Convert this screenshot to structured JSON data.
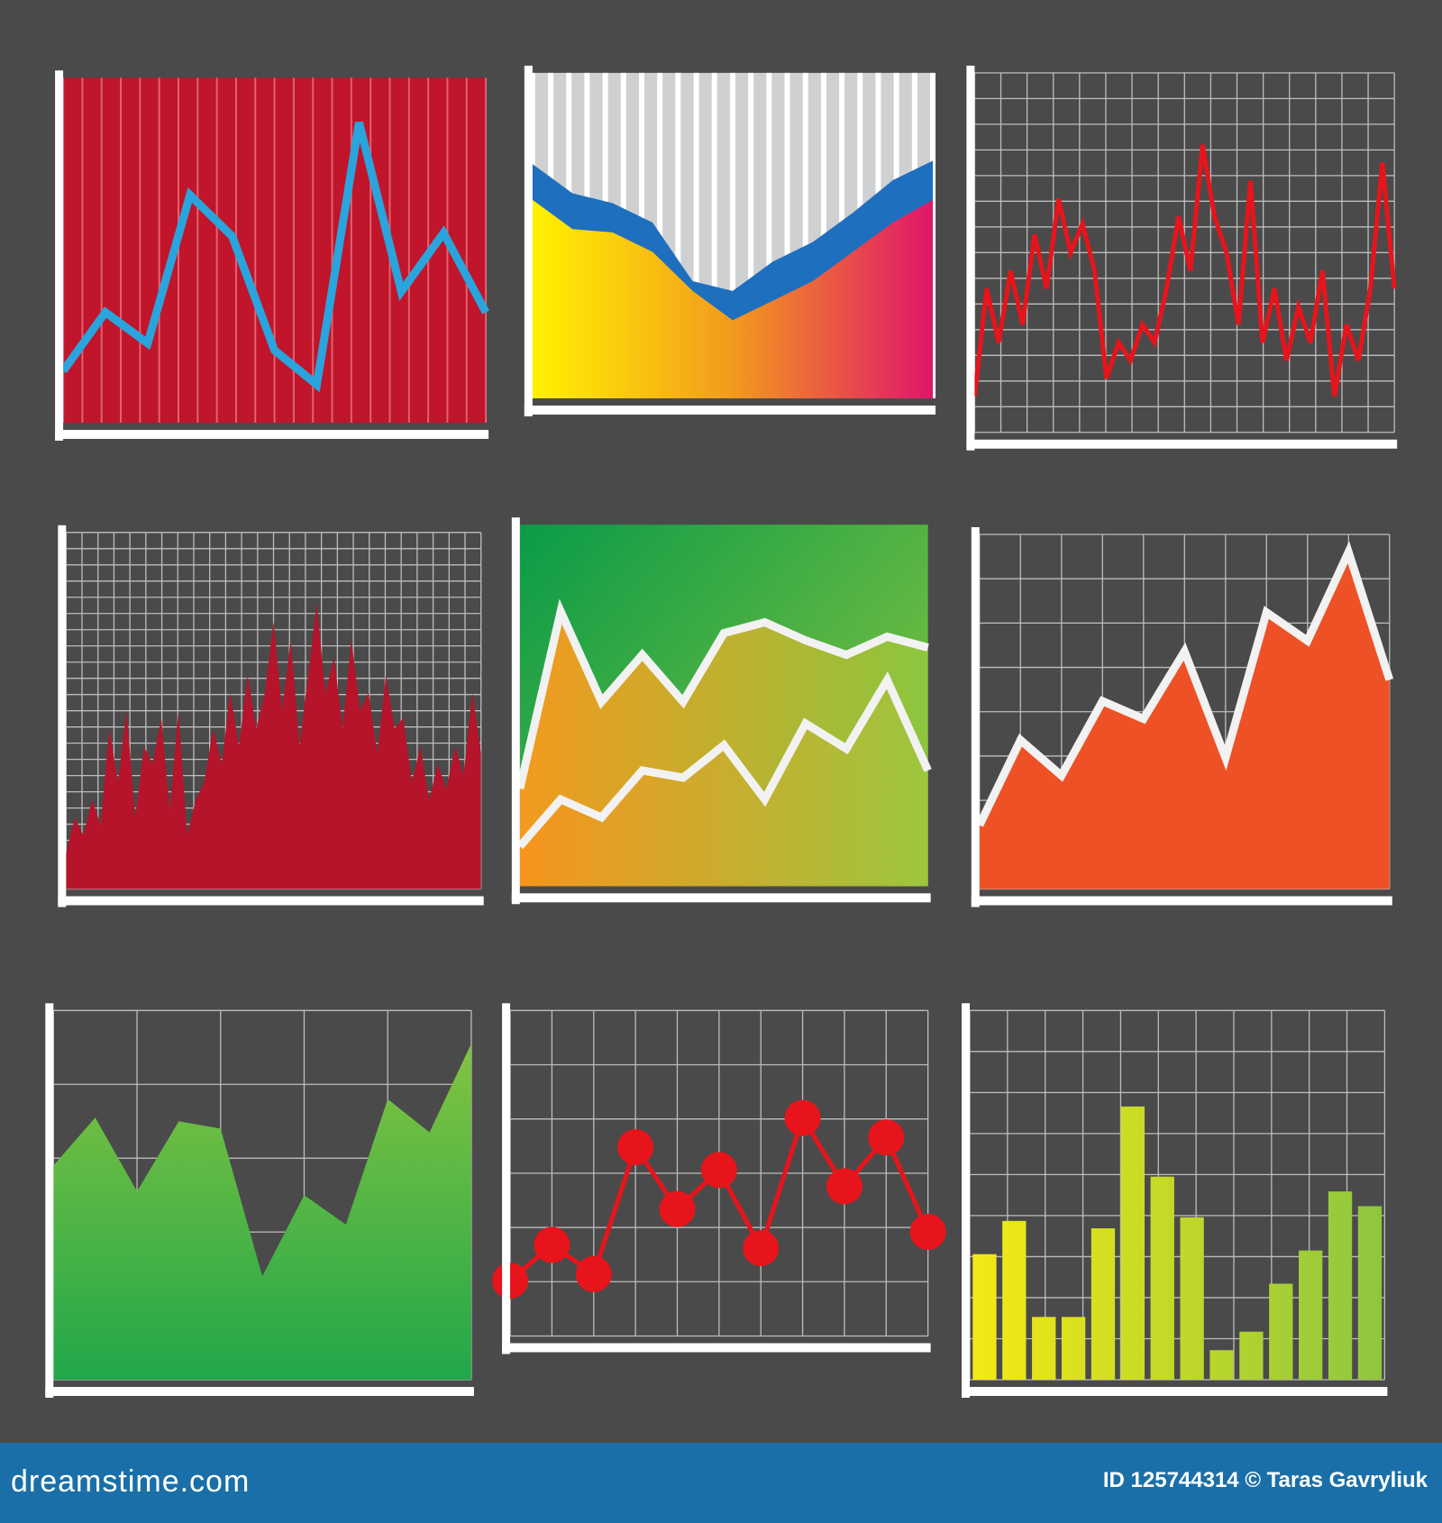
{
  "footer": {
    "site": "dreamstime.com",
    "credit": "ID 125744314 © Taras Gavryliuk"
  },
  "chart_data": [
    {
      "type": "line",
      "background": "#c0152a",
      "stripes": true,
      "ylim": [
        0,
        100
      ],
      "series": [
        {
          "color": "#2aa4dc",
          "values": [
            15,
            32,
            23,
            66,
            54,
            21,
            11,
            87,
            38,
            55,
            32
          ]
        }
      ]
    },
    {
      "type": "area",
      "background": "#cfd0d2",
      "stripes": true,
      "ylim": [
        0,
        100
      ],
      "series": [
        {
          "color": "#1f6fbf",
          "values": [
            72,
            63,
            60,
            54,
            36,
            33,
            42,
            48,
            57,
            67,
            73
          ]
        },
        {
          "color": "#f7e314",
          "gradient": [
            "#fff200",
            "#f39a1e",
            "#e0156b"
          ],
          "values": [
            61,
            52,
            51,
            45,
            33,
            24,
            30,
            36,
            45,
            54,
            61
          ]
        }
      ]
    },
    {
      "type": "line",
      "grid": true,
      "ylim": [
        0,
        100
      ],
      "series": [
        {
          "color": "#e8141b",
          "values": [
            10,
            40,
            25,
            45,
            30,
            55,
            40,
            65,
            50,
            58,
            45,
            15,
            25,
            20,
            30,
            25,
            40,
            60,
            45,
            80,
            60,
            50,
            30,
            70,
            25,
            40,
            20,
            35,
            25,
            45,
            10,
            30,
            20,
            40,
            75,
            40
          ]
        }
      ]
    },
    {
      "type": "area",
      "grid": true,
      "ylim": [
        0,
        100
      ],
      "series": [
        {
          "color": "#b5142a",
          "values": [
            10,
            20,
            15,
            25,
            18,
            45,
            30,
            50,
            20,
            40,
            35,
            48,
            22,
            50,
            15,
            25,
            30,
            45,
            35,
            55,
            40,
            60,
            45,
            55,
            75,
            50,
            70,
            40,
            60,
            80,
            55,
            65,
            45,
            70,
            50,
            55,
            38,
            60,
            45,
            48,
            30,
            40,
            25,
            35,
            28,
            40,
            32,
            55,
            38
          ]
        }
      ]
    },
    {
      "type": "area",
      "background": "#3cae49",
      "background_gradient": [
        "#0a9b48",
        "#8cc63f"
      ],
      "outline": "#f2f2f2",
      "ylim": [
        0,
        100
      ],
      "series": [
        {
          "color": "#e8a026",
          "gradient": [
            "#f39a1e",
            "#8cc63f"
          ],
          "values": [
            27,
            76,
            51,
            64,
            51,
            70,
            73,
            68,
            64,
            69,
            66
          ]
        },
        {
          "color": "#d8a030",
          "gradient": [
            "#f7941d",
            "#9cc63f"
          ],
          "values": [
            11,
            24,
            19,
            32,
            30,
            39,
            24,
            45,
            38,
            57,
            32
          ]
        }
      ]
    },
    {
      "type": "area",
      "grid": true,
      "outline": "#f2f2f2",
      "ylim": [
        0,
        100
      ],
      "series": [
        {
          "color": "#ee5125",
          "values": [
            18,
            42,
            32,
            53,
            48,
            67,
            37,
            78,
            70,
            95,
            59
          ]
        }
      ]
    },
    {
      "type": "area",
      "grid": true,
      "ylim": [
        0,
        100
      ],
      "series": [
        {
          "color": "#5cb848",
          "gradient_vertical": [
            "#8cc63f",
            "#21a74a"
          ],
          "values": [
            58,
            71,
            51,
            70,
            68,
            28,
            50,
            42,
            76,
            67,
            91
          ]
        }
      ]
    },
    {
      "type": "line",
      "grid": true,
      "markers": true,
      "ylim": [
        0,
        100
      ],
      "series": [
        {
          "color": "#e8141b",
          "values": [
            17,
            28,
            19,
            58,
            39,
            51,
            27,
            67,
            46,
            61,
            32
          ]
        }
      ]
    },
    {
      "type": "bar",
      "grid": true,
      "ylim": [
        0,
        100
      ],
      "series": [
        {
          "color": "#c9dc2a",
          "gradient": [
            "#f5ea14",
            "#8dc63f"
          ],
          "values": [
            34,
            43,
            17,
            17,
            41,
            74,
            55,
            44,
            8,
            13,
            26,
            35,
            51,
            47
          ]
        }
      ]
    }
  ]
}
